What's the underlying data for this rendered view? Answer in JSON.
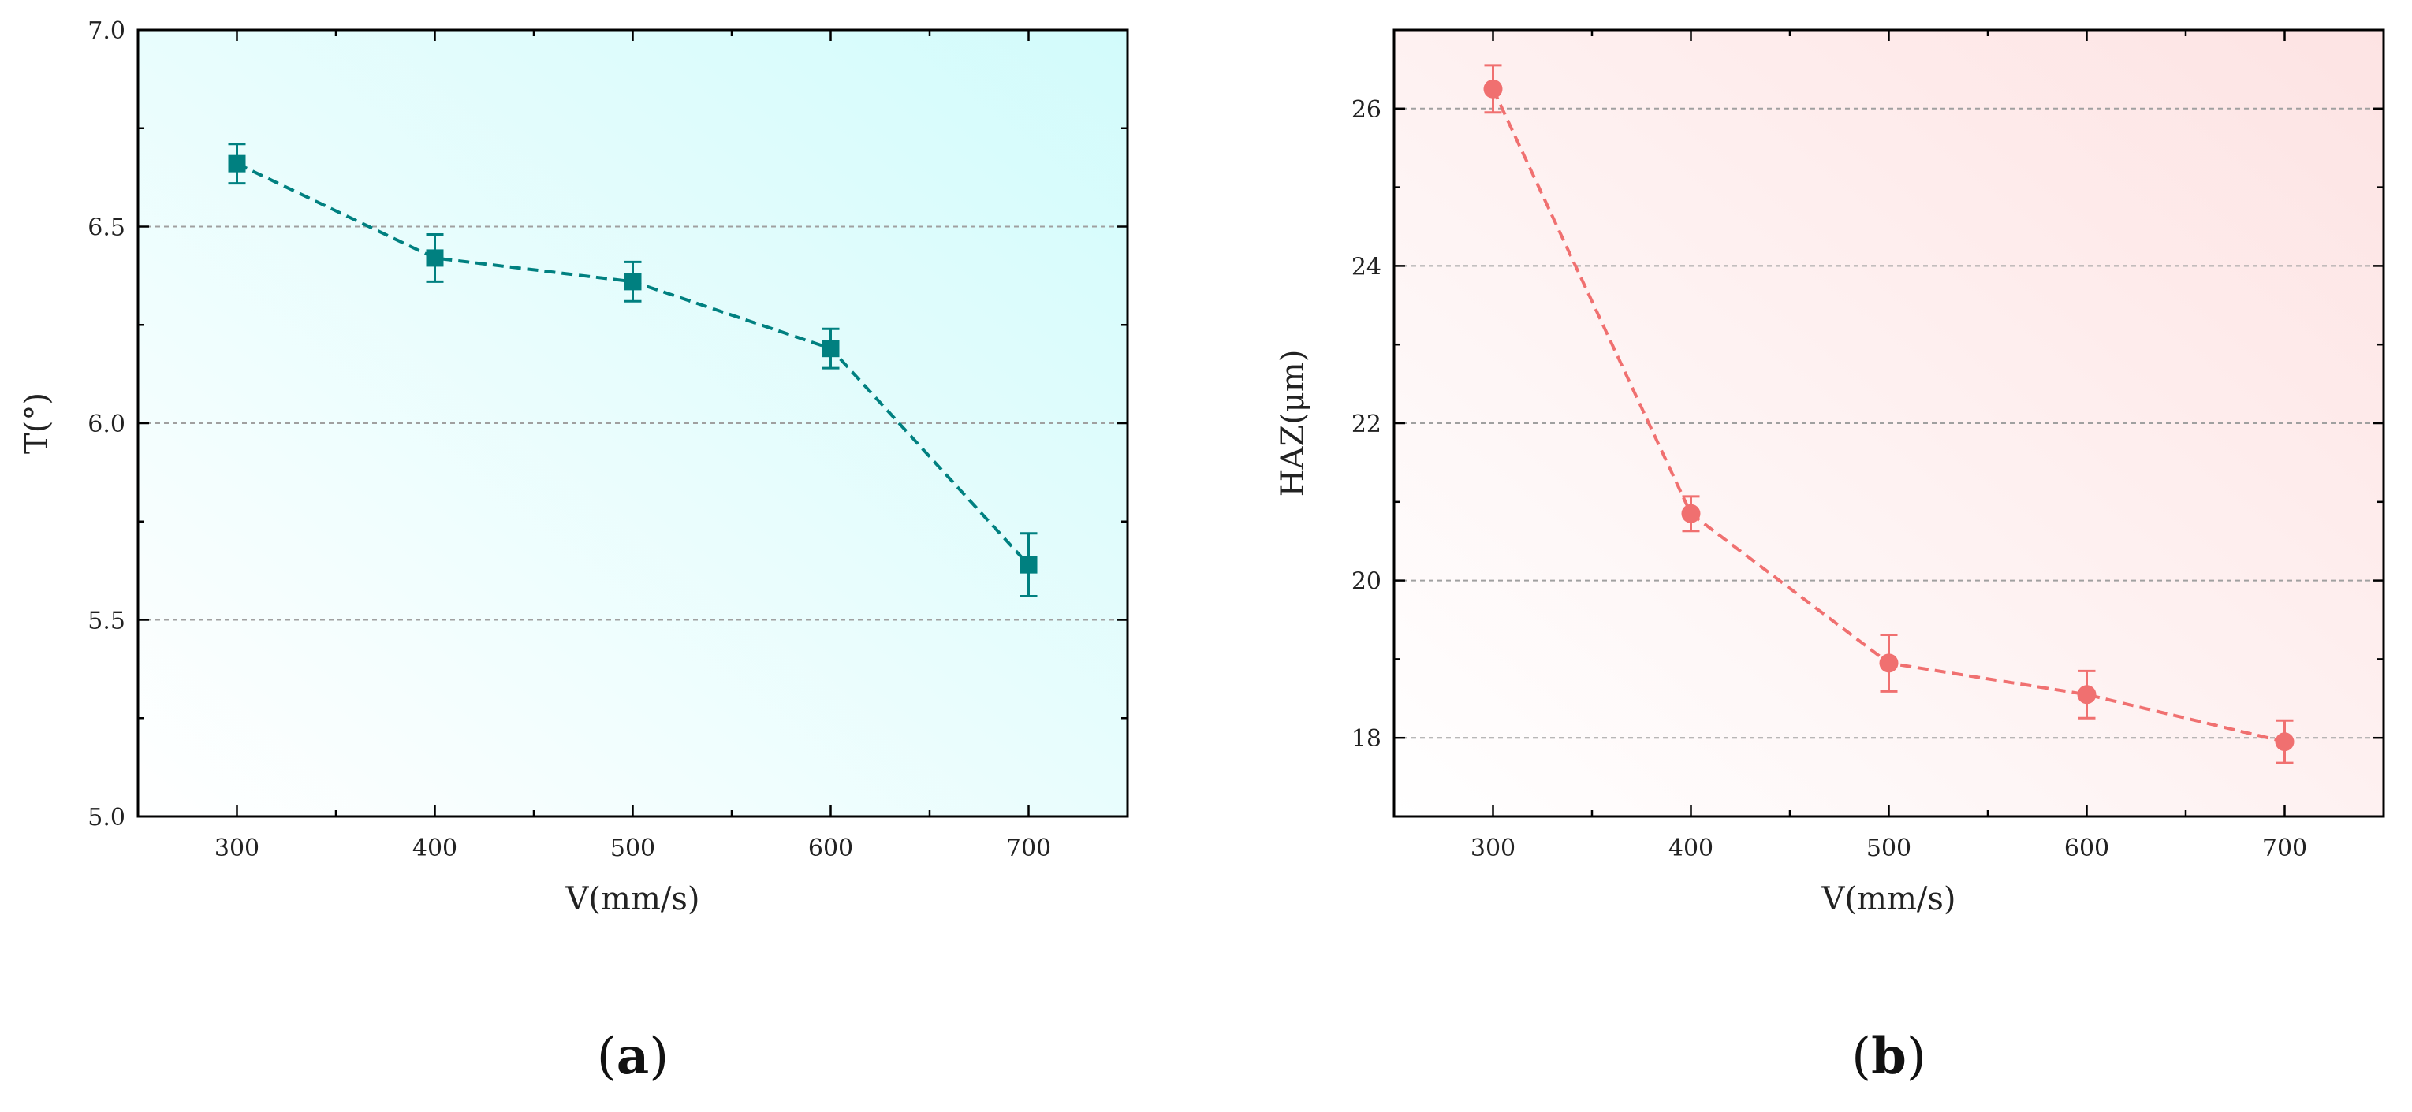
{
  "chart_data": [
    {
      "panel_label": "a",
      "type": "line",
      "xlabel": "V(mm/s)",
      "ylabel": "T(°)",
      "xlim": [
        250,
        750
      ],
      "ylim": [
        5.0,
        7.0
      ],
      "xticks": [
        300,
        400,
        500,
        600,
        700
      ],
      "xtick_labels": [
        "300",
        "400",
        "500",
        "600",
        "700"
      ],
      "yticks": [
        5.0,
        5.5,
        6.0,
        6.5,
        7.0
      ],
      "ytick_labels": [
        "5.0",
        "5.5",
        "6.0",
        "6.5",
        "7.0"
      ],
      "grid": "horizontal dashed",
      "background": "gradient white to light cyan",
      "series": [
        {
          "marker": "square",
          "line_style": "dashed",
          "color": "#008080",
          "points": [
            {
              "x": 300,
              "y": 6.66,
              "err": 0.05
            },
            {
              "x": 400,
              "y": 6.42,
              "err": 0.06
            },
            {
              "x": 500,
              "y": 6.36,
              "err": 0.05
            },
            {
              "x": 600,
              "y": 6.19,
              "err": 0.05
            },
            {
              "x": 700,
              "y": 5.64,
              "err": 0.08
            }
          ]
        }
      ]
    },
    {
      "panel_label": "b",
      "type": "line",
      "xlabel": "V(mm/s)",
      "ylabel": "HAZ(μm)",
      "xlim": [
        250,
        750
      ],
      "ylim": [
        17,
        27
      ],
      "xticks": [
        300,
        400,
        500,
        600,
        700
      ],
      "xtick_labels": [
        "300",
        "400",
        "500",
        "600",
        "700"
      ],
      "yticks": [
        18,
        20,
        22,
        24,
        26
      ],
      "ytick_labels": [
        "18",
        "20",
        "22",
        "24",
        "26"
      ],
      "grid": "horizontal dashed",
      "background": "gradient white to light pink",
      "series": [
        {
          "marker": "circle",
          "line_style": "dashed",
          "color": "#f07070",
          "points": [
            {
              "x": 300,
              "y": 26.25,
              "err": 0.3
            },
            {
              "x": 400,
              "y": 20.85,
              "err": 0.22
            },
            {
              "x": 500,
              "y": 18.95,
              "err": 0.36
            },
            {
              "x": 600,
              "y": 18.55,
              "err": 0.3
            },
            {
              "x": 700,
              "y": 17.95,
              "err": 0.27
            }
          ]
        }
      ]
    }
  ]
}
